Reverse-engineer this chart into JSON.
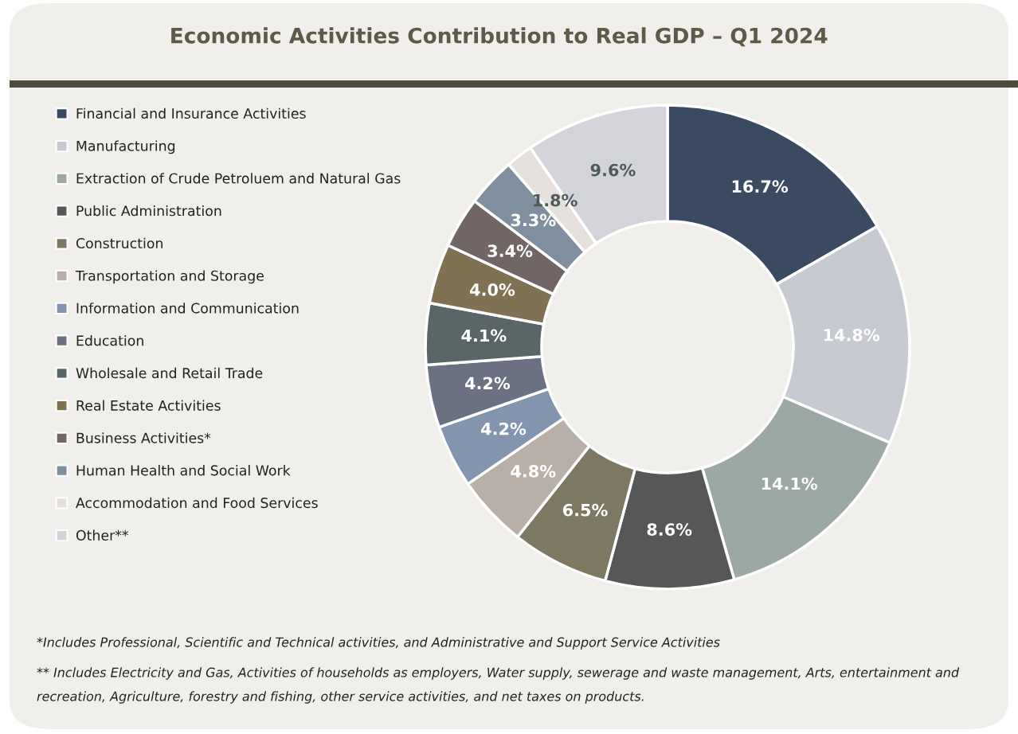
{
  "chart_data": {
    "type": "donut",
    "title": "Economic Activities Contribution to Real GDP – Q1 2024",
    "categories": [
      "Financial and Insurance Activities",
      "Manufacturing",
      "Extraction of Crude Petroluem and Natural Gas",
      "Public Administration",
      "Construction",
      "Transportation and Storage",
      "Information and Communication",
      "Education",
      "Wholesale and Retail Trade",
      "Real Estate Activities",
      "Business Activities*",
      "Human Health and Social Work",
      "Accommodation and Food Services",
      "Other**"
    ],
    "values": [
      16.7,
      14.8,
      14.1,
      8.6,
      6.5,
      4.8,
      4.2,
      4.2,
      4.1,
      4.0,
      3.4,
      3.3,
      1.8,
      9.6
    ],
    "colors": [
      "#3a4a60",
      "#c8cad1",
      "#9ca8a6",
      "#575757",
      "#7d7862",
      "#b8afa9",
      "#8294ae",
      "#6b7182",
      "#596566",
      "#7f7152",
      "#716565",
      "#7f8f9f",
      "#e6e0dc",
      "#d3d4d9"
    ],
    "value_labels": [
      "16.7%",
      "14.8%",
      "14.1%",
      "8.6%",
      "6.5%",
      "4.8%",
      "4.2%",
      "4.2%",
      "4.1%",
      "4.0%",
      "3.4%",
      "3.3%",
      "1.8%",
      "9.6%"
    ],
    "legend": "left",
    "annotations": [
      "*Includes Professional, Scientific and Technical activities, and Administrative and Support Service Activities",
      "** Includes Electricity and Gas, Activities of households as employers, Water supply, sewerage and waste management, Arts, entertainment and recreation, Agriculture, forestry and fishing, other service activities, and net taxes on products."
    ]
  }
}
